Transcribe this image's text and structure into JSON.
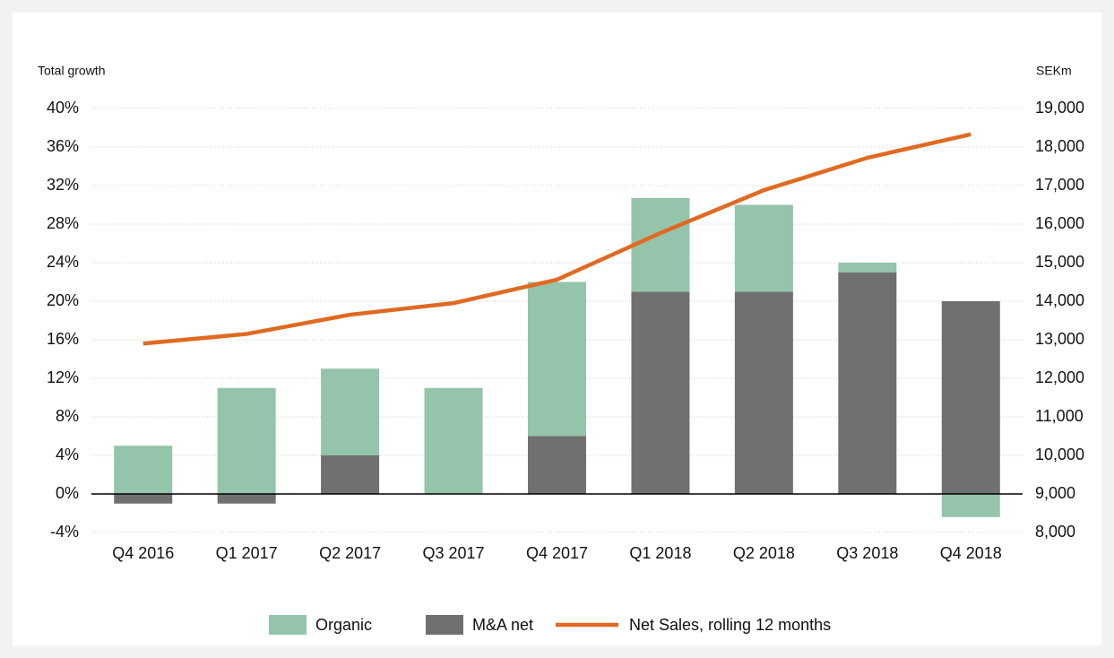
{
  "chart_data": {
    "type": "bar",
    "stacked": true,
    "y_label": "Total growth",
    "y2_label": "SEKm",
    "categories": [
      "Q4 2016",
      "Q1 2017",
      "Q2 2017",
      "Q3 2017",
      "Q4 2017",
      "Q1 2018",
      "Q2 2018",
      "Q3 2018",
      "Q4 2018"
    ],
    "series": [
      {
        "name": "Organic",
        "color": "#94c4aa",
        "values": [
          5,
          11,
          9,
          11,
          16,
          9.7,
          9,
          1,
          -2.4
        ]
      },
      {
        "name": "M&A net",
        "color": "#6f706f",
        "values": [
          -1,
          -1,
          4,
          0,
          6,
          21,
          21,
          23,
          20
        ]
      },
      {
        "name": "Net Sales, rolling 12 months",
        "color": "#e06a22",
        "type": "line",
        "axis": "y2",
        "values": [
          12900,
          13150,
          13650,
          13950,
          14560,
          15770,
          16880,
          17720,
          18330
        ]
      }
    ],
    "ylim": [
      -4,
      40
    ],
    "yticks": [
      {
        "value": -4,
        "label": "-4%"
      },
      {
        "value": 0,
        "label": "0%"
      },
      {
        "value": 4,
        "label": "4%"
      },
      {
        "value": 8,
        "label": "8%"
      },
      {
        "value": 12,
        "label": "12%"
      },
      {
        "value": 16,
        "label": "16%"
      },
      {
        "value": 20,
        "label": "20%"
      },
      {
        "value": 24,
        "label": "24%"
      },
      {
        "value": 28,
        "label": "28%"
      },
      {
        "value": 32,
        "label": "32%"
      },
      {
        "value": 36,
        "label": "36%"
      },
      {
        "value": 40,
        "label": "40%"
      }
    ],
    "y2lim": [
      8000,
      19000
    ],
    "y2ticks": [
      {
        "value": 8000,
        "label": "8,000"
      },
      {
        "value": 9000,
        "label": "9,000"
      },
      {
        "value": 10000,
        "label": "10,000"
      },
      {
        "value": 11000,
        "label": "11,000"
      },
      {
        "value": 12000,
        "label": "12,000"
      },
      {
        "value": 13000,
        "label": "13,000"
      },
      {
        "value": 14000,
        "label": "14,000"
      },
      {
        "value": 15000,
        "label": "15,000"
      },
      {
        "value": 16000,
        "label": "16,000"
      },
      {
        "value": 17000,
        "label": "17,000"
      },
      {
        "value": 18000,
        "label": "18,000"
      },
      {
        "value": 19000,
        "label": "19,000"
      }
    ],
    "grid": true,
    "legend": "bottom"
  }
}
